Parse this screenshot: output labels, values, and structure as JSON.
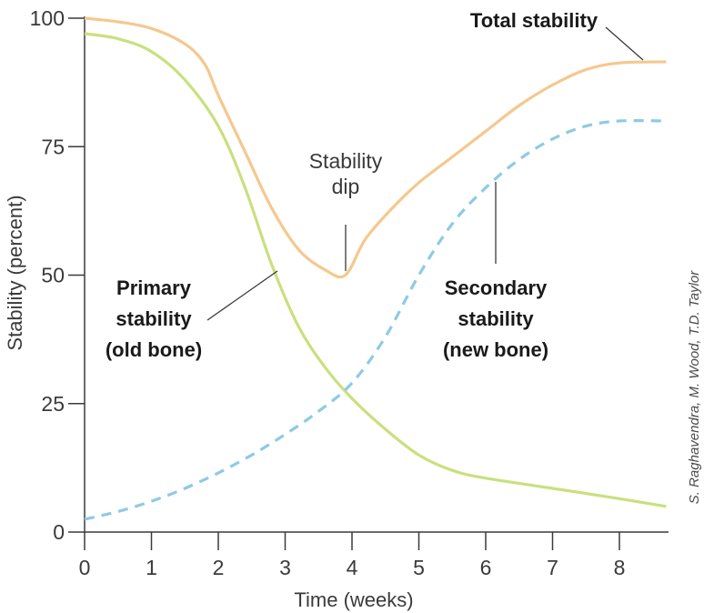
{
  "chart_data": {
    "type": "line",
    "xlabel": "Time (weeks)",
    "ylabel": "Stability (percent)",
    "xlim": [
      0,
      8.7
    ],
    "ylim": [
      0,
      100
    ],
    "x_ticks": [
      "0",
      "1",
      "2",
      "3",
      "4",
      "5",
      "6",
      "7",
      "8"
    ],
    "y_ticks": [
      "0",
      "25",
      "50",
      "75",
      "100"
    ],
    "grid": false,
    "legend": "none",
    "series": [
      {
        "name": "Total stability",
        "color": "#f5c88e",
        "style": "solid",
        "x": [
          0,
          0.5,
          1,
          1.5,
          1.8,
          2,
          2.4,
          2.8,
          3.2,
          3.6,
          3.9,
          4.2,
          4.6,
          5,
          5.5,
          6,
          6.5,
          7,
          7.5,
          8,
          8.7
        ],
        "y": [
          100,
          99.3,
          98,
          95,
          91,
          85,
          74,
          63,
          55,
          51,
          50,
          57,
          63,
          68,
          73,
          78,
          83,
          87,
          90,
          91.3,
          91.5
        ]
      },
      {
        "name": "Primary stability (old bone)",
        "color": "#c9e07e",
        "style": "solid",
        "x": [
          0,
          0.5,
          1,
          1.5,
          2,
          2.4,
          2.8,
          3.2,
          3.6,
          4,
          4.5,
          5,
          5.5,
          6,
          7,
          8,
          8.7
        ],
        "y": [
          97,
          96,
          93.5,
          88,
          79,
          67,
          52,
          40,
          32,
          26,
          20,
          15,
          12,
          10.5,
          8.5,
          6.5,
          5
        ]
      },
      {
        "name": "Secondary stability (new bone)",
        "color": "#8ecae6",
        "style": "dashed",
        "x": [
          0,
          0.5,
          1,
          1.5,
          2,
          2.5,
          3,
          3.5,
          4,
          4.5,
          5,
          5.5,
          6,
          6.5,
          7,
          7.5,
          8,
          8.7
        ],
        "y": [
          2.5,
          4,
          6,
          8.5,
          11.5,
          15,
          19,
          23.5,
          29,
          38,
          50,
          60,
          67,
          72.5,
          76.5,
          79,
          80,
          80
        ]
      }
    ],
    "annotations": [
      {
        "lines": [
          "Total stability"
        ],
        "bold": true
      },
      {
        "lines": [
          "Stability",
          "dip"
        ],
        "bold": false
      },
      {
        "lines": [
          "Primary",
          "stability",
          "(old bone)"
        ],
        "bold": true
      },
      {
        "lines": [
          "Secondary",
          "stability",
          "(new bone)"
        ],
        "bold": true
      }
    ]
  },
  "credit": "S. Raghavendra, M. Wood, T.D. Taylor"
}
